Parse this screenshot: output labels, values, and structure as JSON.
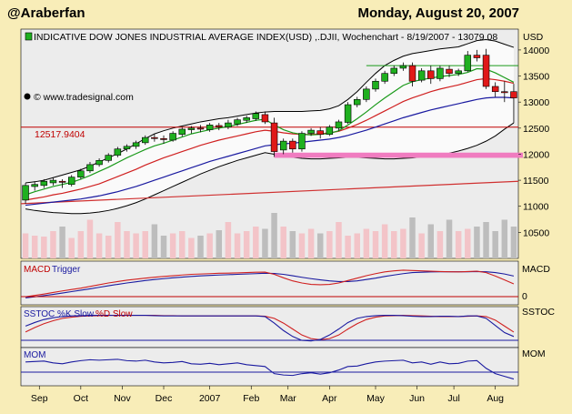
{
  "header": {
    "author": "@Araberfan",
    "date": "Monday, August 20, 2007"
  },
  "chart_data": {
    "type": "candlestick",
    "title": "INDICATIVE DOW JONES INDUSTRIAL AVERAGE INDEX(USD) ,.DJII, Wochenchart - 8/19/2007 - 13079.08",
    "currency": "USD",
    "watermark": "© www.tradesignal.com",
    "price_label": "12517.9404",
    "ylim": [
      10000,
      14400
    ],
    "yticks": [
      10500,
      11000,
      11500,
      12000,
      12500,
      13000,
      13500,
      14000
    ],
    "xlabels": [
      "Sep",
      "Oct",
      "Nov",
      "Dec",
      "2007",
      "Feb",
      "Mar",
      "Apr",
      "May",
      "Jun",
      "Jul",
      "Aug"
    ],
    "xlabel_index": [
      1.5,
      6,
      10.5,
      15,
      20,
      24.5,
      28.5,
      33,
      38,
      42.5,
      46.5,
      51
    ],
    "candles": [
      [
        11120,
        11400,
        11050,
        11450
      ],
      [
        11380,
        11420,
        11300,
        11480
      ],
      [
        11400,
        11480,
        11350,
        11520
      ],
      [
        11450,
        11500,
        11400,
        11550
      ],
      [
        11480,
        11460,
        11350,
        11520
      ],
      [
        11420,
        11560,
        11380,
        11600
      ],
      [
        11560,
        11680,
        11520,
        11720
      ],
      [
        11680,
        11800,
        11640,
        11850
      ],
      [
        11800,
        11880,
        11760,
        11920
      ],
      [
        11880,
        11980,
        11840,
        12020
      ],
      [
        11980,
        12100,
        11940,
        12140
      ],
      [
        12100,
        12150,
        12050,
        12190
      ],
      [
        12150,
        12220,
        12100,
        12260
      ],
      [
        12220,
        12320,
        12180,
        12360
      ],
      [
        12320,
        12300,
        12240,
        12380
      ],
      [
        12300,
        12280,
        12200,
        12360
      ],
      [
        12270,
        12400,
        12240,
        12440
      ],
      [
        12380,
        12480,
        12340,
        12520
      ],
      [
        12470,
        12500,
        12400,
        12540
      ],
      [
        12500,
        12480,
        12420,
        12560
      ],
      [
        12470,
        12560,
        12430,
        12600
      ],
      [
        12550,
        12520,
        12460,
        12600
      ],
      [
        12520,
        12600,
        12480,
        12660
      ],
      [
        12580,
        12660,
        12540,
        12700
      ],
      [
        12650,
        12700,
        12600,
        12740
      ],
      [
        12680,
        12780,
        12640,
        12820
      ],
      [
        12760,
        12620,
        12580,
        12820
      ],
      [
        12600,
        12050,
        11950,
        12700
      ],
      [
        12080,
        12250,
        12000,
        12300
      ],
      [
        12250,
        12100,
        12030,
        12300
      ],
      [
        12100,
        12400,
        12050,
        12440
      ],
      [
        12400,
        12460,
        12350,
        12500
      ],
      [
        12450,
        12380,
        12300,
        12520
      ],
      [
        12380,
        12520,
        12350,
        12560
      ],
      [
        12500,
        12620,
        12450,
        12660
      ],
      [
        12610,
        12950,
        12580,
        13000
      ],
      [
        12950,
        13050,
        12900,
        13100
      ],
      [
        13050,
        13250,
        13000,
        13300
      ],
      [
        13250,
        13400,
        13200,
        13450
      ],
      [
        13400,
        13550,
        13350,
        13600
      ],
      [
        13550,
        13650,
        13500,
        13700
      ],
      [
        13650,
        13700,
        13600,
        13760
      ],
      [
        13700,
        13400,
        13300,
        13760
      ],
      [
        13420,
        13600,
        13380,
        13650
      ],
      [
        13600,
        13450,
        13350,
        13700
      ],
      [
        13450,
        13650,
        13400,
        13700
      ],
      [
        13630,
        13550,
        13480,
        13700
      ],
      [
        13550,
        13600,
        13500,
        13640
      ],
      [
        13600,
        13900,
        13580,
        13980
      ],
      [
        13900,
        13850,
        13780,
        14000
      ],
      [
        13900,
        13300,
        13250,
        14020
      ],
      [
        13300,
        13200,
        13100,
        13380
      ],
      [
        13200,
        13180,
        13000,
        13400
      ],
      [
        13200,
        13080,
        12600,
        13350
      ]
    ],
    "ma_fast": [
      11220,
      11280,
      11330,
      11380,
      11420,
      11460,
      11520,
      11590,
      11670,
      11750,
      11840,
      11930,
      12010,
      12090,
      12160,
      12210,
      12270,
      12330,
      12390,
      12430,
      12470,
      12500,
      12530,
      12570,
      12610,
      12650,
      12670,
      12560,
      12470,
      12410,
      12380,
      12370,
      12380,
      12400,
      12450,
      12560,
      12680,
      12810,
      12950,
      13080,
      13200,
      13320,
      13390,
      13430,
      13460,
      13490,
      13510,
      13530,
      13570,
      13640,
      13630,
      13560,
      13470,
      13380
    ],
    "ma_mid": [
      11120,
      11150,
      11180,
      11220,
      11250,
      11290,
      11330,
      11380,
      11430,
      11500,
      11570,
      11640,
      11710,
      11790,
      11860,
      11930,
      11990,
      12050,
      12110,
      12170,
      12220,
      12270,
      12310,
      12350,
      12390,
      12430,
      12460,
      12440,
      12410,
      12390,
      12380,
      12380,
      12390,
      12410,
      12440,
      12500,
      12570,
      12650,
      12740,
      12830,
      12920,
      13010,
      13080,
      13140,
      13200,
      13250,
      13290,
      13330,
      13380,
      13430,
      13450,
      13430,
      13400,
      13360
    ],
    "ma_slow": [
      11020,
      11040,
      11060,
      11080,
      11100,
      11120,
      11140,
      11170,
      11200,
      11240,
      11280,
      11330,
      11380,
      11440,
      11500,
      11560,
      11620,
      11680,
      11740,
      11800,
      11860,
      11910,
      11960,
      12010,
      12060,
      12110,
      12160,
      12180,
      12200,
      12210,
      12230,
      12250,
      12270,
      12290,
      12320,
      12360,
      12410,
      12460,
      12520,
      12580,
      12640,
      12700,
      12750,
      12800,
      12850,
      12890,
      12930,
      12970,
      13010,
      13050,
      13080,
      13090,
      13090,
      13080
    ],
    "band_upper": [
      11450,
      11470,
      11500,
      11550,
      11600,
      11650,
      11700,
      11770,
      11850,
      11930,
      12010,
      12100,
      12200,
      12300,
      12390,
      12450,
      12500,
      12540,
      12580,
      12620,
      12650,
      12680,
      12700,
      12730,
      12760,
      12790,
      12810,
      12820,
      12820,
      12820,
      12820,
      12830,
      12840,
      12870,
      12930,
      13050,
      13200,
      13380,
      13550,
      13700,
      13800,
      13880,
      13930,
      13960,
      13990,
      14020,
      14040,
      14060,
      14120,
      14180,
      14200,
      14170,
      14110,
      14050
    ],
    "band_lower": [
      10950,
      10920,
      10900,
      10880,
      10870,
      10860,
      10860,
      10870,
      10890,
      10920,
      10960,
      11010,
      11070,
      11140,
      11220,
      11300,
      11380,
      11460,
      11540,
      11620,
      11690,
      11760,
      11820,
      11880,
      11930,
      11980,
      12030,
      12000,
      11960,
      11940,
      11920,
      11910,
      11910,
      11920,
      11930,
      11940,
      11940,
      11930,
      11920,
      11910,
      11910,
      11920,
      11930,
      11950,
      11970,
      11990,
      12020,
      12060,
      12110,
      12170,
      12250,
      12350,
      12480,
      12600
    ],
    "channel_line": [
      [
        0,
        11050
      ],
      [
        54,
        11480
      ]
    ],
    "horizontal_levels": [
      12517.9404
    ],
    "resistance_line": {
      "from": 37,
      "to": 54,
      "value": 13700
    },
    "support_zone": {
      "from": 27,
      "to": 54,
      "low": 11930,
      "high": 12030
    },
    "volume": [
      0.55,
      0.5,
      0.48,
      0.6,
      0.7,
      0.45,
      0.6,
      0.85,
      0.55,
      0.5,
      0.8,
      0.6,
      0.55,
      0.6,
      0.75,
      0.5,
      0.55,
      0.6,
      0.45,
      0.5,
      0.55,
      0.62,
      0.8,
      0.55,
      0.6,
      0.7,
      0.65,
      1.0,
      0.7,
      0.6,
      0.55,
      0.65,
      0.55,
      0.6,
      0.8,
      0.5,
      0.55,
      0.65,
      0.6,
      0.75,
      0.6,
      0.65,
      0.9,
      0.55,
      0.75,
      0.6,
      0.85,
      0.6,
      0.65,
      0.7,
      0.8,
      0.6,
      0.85,
      0.7
    ],
    "macd": {
      "label_a": "MACD",
      "label_b": "Trigger",
      "right_label": "MACD",
      "zero_label": "0",
      "macd_line": [
        20,
        28,
        36,
        45,
        54,
        62,
        70,
        80,
        90,
        100,
        108,
        116,
        122,
        128,
        133,
        138,
        142,
        146,
        150,
        152,
        154,
        156,
        157,
        158,
        160,
        162,
        163,
        150,
        130,
        112,
        100,
        92,
        90,
        92,
        100,
        114,
        128,
        142,
        154,
        164,
        170,
        174,
        172,
        170,
        168,
        166,
        165,
        164,
        166,
        168,
        160,
        140,
        118,
        95
      ],
      "trigger_line": [
        14,
        20,
        27,
        34,
        42,
        50,
        58,
        66,
        75,
        84,
        92,
        100,
        107,
        114,
        120,
        125,
        130,
        134,
        138,
        141,
        144,
        146,
        148,
        150,
        152,
        154,
        156,
        155,
        150,
        142,
        133,
        125,
        118,
        112,
        108,
        108,
        112,
        120,
        128,
        138,
        146,
        154,
        160,
        162,
        164,
        165,
        165,
        165,
        165,
        166,
        165,
        160,
        152,
        140
      ],
      "ylim": [
        0,
        200
      ]
    },
    "sstoc": {
      "label_a": "SSTOC %K Slow",
      "label_b": "%D Slow",
      "right_label": "SSTOC",
      "k_line": [
        60,
        72,
        82,
        88,
        92,
        94,
        95,
        96,
        96,
        96,
        96,
        96,
        96,
        96,
        95,
        94,
        94,
        94,
        94,
        94,
        94,
        94,
        94,
        94,
        94,
        94,
        92,
        70,
        45,
        25,
        12,
        10,
        15,
        30,
        50,
        72,
        86,
        92,
        95,
        96,
        96,
        95,
        93,
        92,
        92,
        93,
        93,
        92,
        94,
        94,
        86,
        62,
        38,
        25
      ],
      "d_line": [
        40,
        55,
        68,
        78,
        86,
        90,
        93,
        94,
        95,
        96,
        96,
        96,
        96,
        96,
        96,
        95,
        95,
        94,
        94,
        94,
        94,
        94,
        94,
        94,
        94,
        94,
        93,
        86,
        70,
        50,
        30,
        18,
        14,
        18,
        30,
        50,
        68,
        82,
        90,
        94,
        95,
        96,
        95,
        94,
        93,
        92,
        92,
        92,
        93,
        94,
        92,
        80,
        60,
        40
      ],
      "ylim": [
        0,
        110
      ]
    },
    "mom": {
      "label_a": "MOM",
      "right_label": "MOM",
      "line": [
        300,
        310,
        320,
        280,
        260,
        300,
        330,
        350,
        340,
        350,
        360,
        330,
        320,
        340,
        300,
        280,
        290,
        310,
        260,
        250,
        270,
        240,
        260,
        280,
        240,
        220,
        200,
        40,
        10,
        0,
        40,
        60,
        30,
        60,
        120,
        200,
        210,
        260,
        300,
        320,
        330,
        340,
        280,
        300,
        250,
        300,
        260,
        270,
        320,
        330,
        160,
        40,
        -20,
        -80
      ],
      "ylim": [
        -150,
        500
      ]
    }
  }
}
